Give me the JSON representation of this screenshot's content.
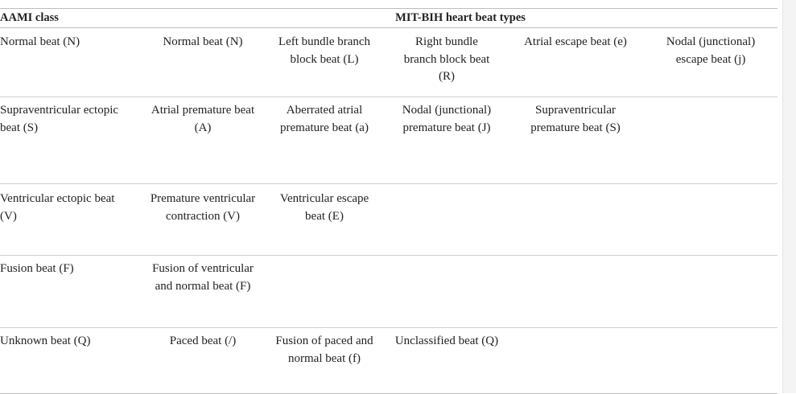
{
  "table": {
    "headers": {
      "aami_class": "AAMI class",
      "mit_bih_types": "MIT-BIH heart beat types"
    },
    "rows": [
      {
        "class": "Normal beat (N)",
        "types": [
          "Normal beat (N)",
          "Left bundle branch block beat (L)",
          "Right bundle branch block beat (R)",
          "Atrial escape beat (e)",
          "Nodal (junctional) escape beat (j)"
        ]
      },
      {
        "class": "Supraventricular ectopic beat (S)",
        "types": [
          "Atrial premature beat (A)",
          "Aberrated atrial premature beat (a)",
          "Nodal (junctional) premature beat (J)",
          "Supraventricular premature beat (S)",
          ""
        ]
      },
      {
        "class": "Ventricular ectopic beat (V)",
        "types": [
          "Premature ventricular contraction (V)",
          "Ventricular escape beat (E)",
          "",
          "",
          ""
        ]
      },
      {
        "class": "Fusion beat (F)",
        "types": [
          "Fusion of ventricular and normal beat (F)",
          "",
          "",
          "",
          ""
        ]
      },
      {
        "class": "Unknown beat (Q)",
        "types": [
          "Paced beat (/)",
          "Fusion of paced and normal beat (f)",
          "Unclassified beat (Q)",
          "",
          ""
        ]
      }
    ]
  }
}
